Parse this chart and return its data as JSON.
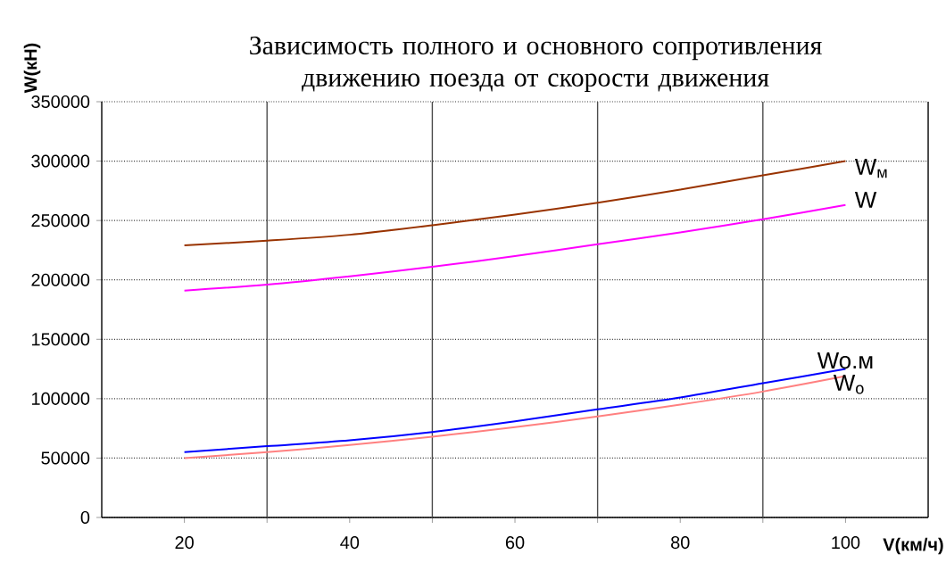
{
  "chart_data": {
    "type": "line",
    "title": "Зависимость полного и основного сопротивления движению поезда от скорости движения",
    "xlabel": "V(км/ч)",
    "ylabel": "W(кН)",
    "x": [
      20,
      30,
      40,
      50,
      60,
      70,
      80,
      90,
      100
    ],
    "series": [
      {
        "name": "W$_{м}$",
        "color": "#993300",
        "values": [
          229000,
          233000,
          238000,
          246000,
          255000,
          265000,
          276000,
          288000,
          300000
        ]
      },
      {
        "name": "W",
        "color": "#ff00ff",
        "values": [
          191000,
          196000,
          203000,
          211000,
          220000,
          230000,
          240000,
          251000,
          263000
        ]
      },
      {
        "name": "Wo.м",
        "color": "#0000ff",
        "values": [
          55000,
          60000,
          65000,
          72000,
          81000,
          91000,
          101000,
          113000,
          125000
        ]
      },
      {
        "name": "W$_{o}$",
        "color": "#ff8080",
        "values": [
          50000,
          55000,
          61000,
          68000,
          76000,
          85000,
          95000,
          106000,
          119000
        ]
      }
    ],
    "xlim": [
      10,
      110
    ],
    "ylim": [
      0,
      350000
    ],
    "xticks": [
      20,
      {
        "value": 30,
        "label": null
      },
      40,
      {
        "value": 50,
        "label": null
      },
      60,
      {
        "value": 70,
        "label": null
      },
      80,
      {
        "value": 90,
        "label": null
      },
      100
    ],
    "yticks": [
      0,
      50000,
      100000,
      150000,
      200000,
      250000,
      300000,
      350000
    ],
    "grid": true,
    "marker": "none",
    "line_style": "solid"
  }
}
